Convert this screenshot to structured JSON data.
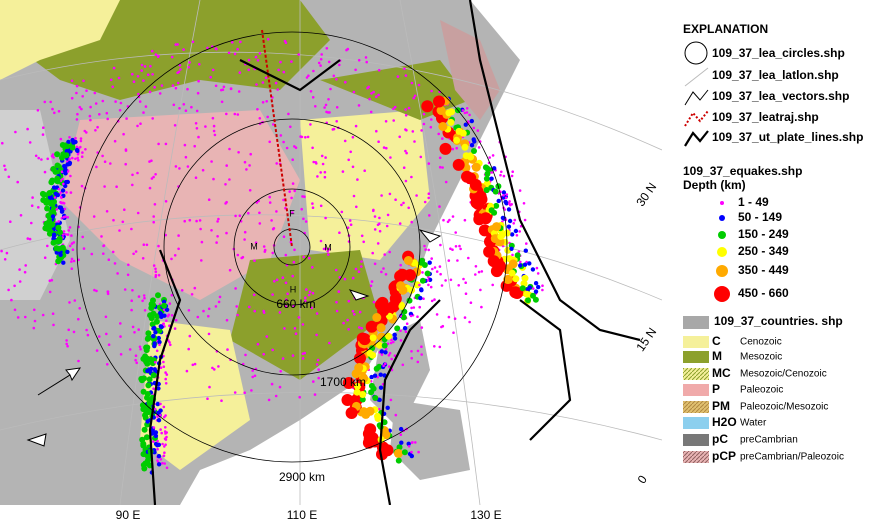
{
  "explanation": {
    "title": "EXPLANATION",
    "layers": [
      "109_37_lea_circles.shp",
      "109_37_lea_latlon.shp",
      "109_37_lea_vectors.shp",
      "109_37_leatraj.shp",
      "109_37_ut_plate_lines.shp"
    ],
    "equakes": {
      "title": "109_37_equakes.shp",
      "subtitle": "Depth (km)",
      "classes": [
        "1 - 49",
        "50 - 149",
        "150 - 249",
        "250 - 349",
        "350 - 449",
        "450 - 660"
      ]
    },
    "countries": "109_37_countries. shp",
    "geology": [
      {
        "code": "C",
        "label": "Cenozoic"
      },
      {
        "code": "M",
        "label": "Mesozoic"
      },
      {
        "code": "MC",
        "label": "Mesozoic/Cenozoic"
      },
      {
        "code": "P",
        "label": "Paleozoic"
      },
      {
        "code": "PM",
        "label": "Paleozoic/Mesozoic"
      },
      {
        "code": "H2O",
        "label": "Water"
      },
      {
        "code": "pC",
        "label": "preCambrian"
      },
      {
        "code": "pCP",
        "label": "preCambrian/Paleozoic"
      }
    ]
  },
  "map": {
    "ring_labels": [
      "660 km",
      "1700 km",
      "2900 km"
    ],
    "center_labels": [
      "F",
      "M",
      "M",
      "H"
    ],
    "lat_labels": [
      "30 N",
      "15 N",
      "0"
    ],
    "lon_labels": [
      "90 E",
      "110 E",
      "130 E"
    ]
  }
}
